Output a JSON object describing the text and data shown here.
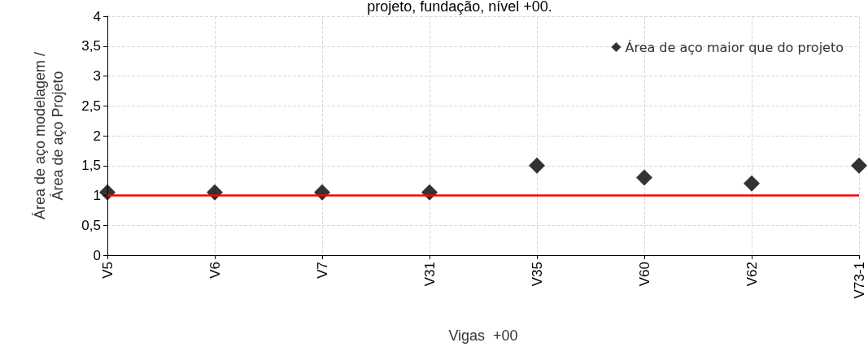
{
  "chart_data": {
    "type": "scatter",
    "title": "projeto, fundação, nível +00.",
    "xlabel": "Vigas  +00",
    "ylabel": "Área de aço modelagem /\nÁrea de aço Projeto",
    "categories": [
      "V5",
      "V6",
      "V7",
      "V31",
      "V35",
      "V60",
      "V62",
      "V73-1"
    ],
    "series": [
      {
        "name": "Área de aço maior que do projeto",
        "color": "#000000",
        "values": [
          1.05,
          1.05,
          1.05,
          1.05,
          1.5,
          1.3,
          1.2,
          1.5
        ]
      }
    ],
    "ylim": [
      0,
      4
    ],
    "yticks": [
      0,
      {
        "value": 0.5,
        "label": "0,5"
      },
      1,
      {
        "value": 1.5,
        "label": "1,5"
      },
      2,
      {
        "value": 2.5,
        "label": "2,5"
      },
      3,
      {
        "value": 3.5,
        "label": "3,5"
      },
      4
    ],
    "ref_lines": [
      {
        "axis": "y",
        "value": 1,
        "color": "#ff0000",
        "line_style": "solid"
      }
    ],
    "marker": "diamond",
    "grid": true,
    "legend": "top right"
  }
}
